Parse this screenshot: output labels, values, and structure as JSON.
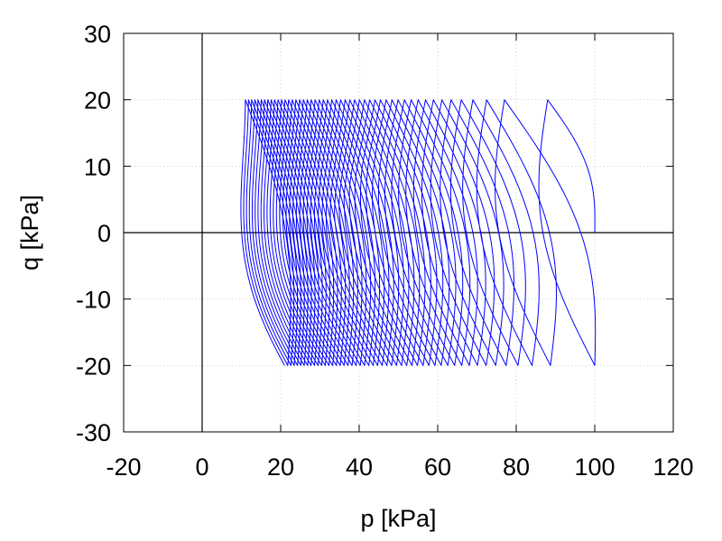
{
  "chart_data": {
    "type": "line",
    "title": "",
    "xlabel": "p [kPa]",
    "ylabel": "q [kPa]",
    "xlim": [
      -20,
      120
    ],
    "ylim": [
      -30,
      30
    ],
    "xticks": [
      -20,
      0,
      20,
      40,
      60,
      80,
      100,
      120
    ],
    "yticks": [
      -30,
      -20,
      -10,
      0,
      10,
      20,
      30
    ],
    "grid": true,
    "zero_axes": true,
    "legend": "none",
    "series": [
      {
        "color": "#0000ff",
        "cycles": 50,
        "start": [
          100,
          0
        ],
        "q_amplitude": 20,
        "p_at_q_peak_range": [
          88,
          11
        ],
        "p_at_q_trough_range": [
          100,
          21
        ],
        "loop_bulge_start": 8,
        "loop_bulge_end": 12,
        "near_zero_q_min_p_range": [
          66,
          5
        ]
      }
    ]
  }
}
